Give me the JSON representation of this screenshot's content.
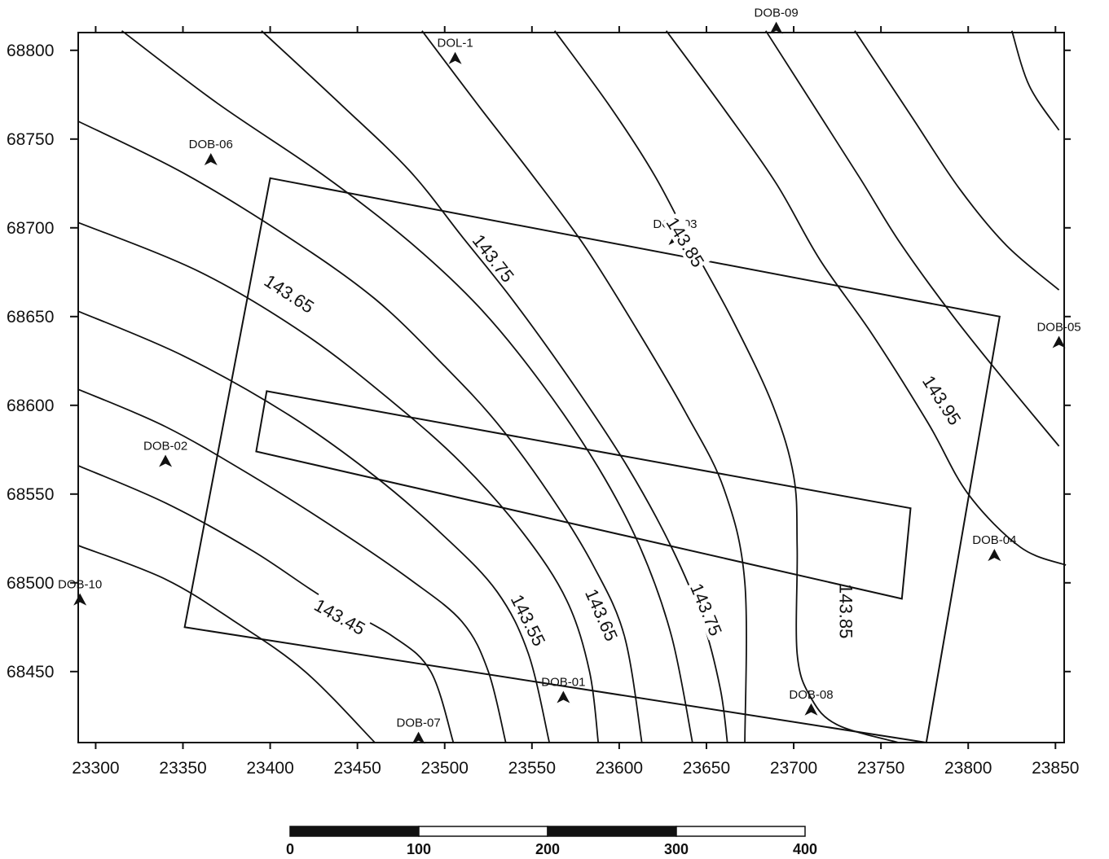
{
  "map": {
    "x_axis": {
      "min": 23290,
      "max": 23855,
      "ticks": [
        23300,
        23350,
        23400,
        23450,
        23500,
        23550,
        23600,
        23650,
        23700,
        23750,
        23800,
        23850
      ],
      "tick_labels": [
        "23300",
        "23350",
        "23400",
        "23450",
        "23500",
        "23550",
        "23600",
        "23650",
        "23700",
        "23750",
        "23800",
        "23850"
      ]
    },
    "y_axis": {
      "min": 68410,
      "max": 68810,
      "ticks": [
        68450,
        68500,
        68550,
        68600,
        68650,
        68700,
        68750,
        68800
      ],
      "tick_labels": [
        "68450",
        "68500",
        "68550",
        "68600",
        "68650",
        "68700",
        "68750",
        "68800"
      ]
    },
    "wells": [
      {
        "name": "DOL-1",
        "x": 23506,
        "y": 68795
      },
      {
        "name": "DOB-09",
        "x": 23690,
        "y": 68812
      },
      {
        "name": "DOB-06",
        "x": 23366,
        "y": 68738
      },
      {
        "name": "DOB-03",
        "x": 23632,
        "y": 68693
      },
      {
        "name": "DOB-05",
        "x": 23852,
        "y": 68635
      },
      {
        "name": "DOB-02",
        "x": 23340,
        "y": 68568
      },
      {
        "name": "DOB-04",
        "x": 23815,
        "y": 68515
      },
      {
        "name": "DOB-10",
        "x": 23291,
        "y": 68490
      },
      {
        "name": "DOB-01",
        "x": 23568,
        "y": 68435
      },
      {
        "name": "DOB-08",
        "x": 23710,
        "y": 68428
      },
      {
        "name": "DOB-07",
        "x": 23485,
        "y": 68412
      }
    ],
    "contours": [
      {
        "points": [
          [
            23290,
            68521
          ],
          [
            23340,
            68502
          ],
          [
            23380,
            68478
          ],
          [
            23420,
            68450
          ],
          [
            23460,
            68410
          ]
        ]
      },
      {
        "points": [
          [
            23290,
            68566
          ],
          [
            23340,
            68545
          ],
          [
            23390,
            68518
          ],
          [
            23430,
            68492
          ],
          [
            23470,
            68470
          ],
          [
            23492,
            68450
          ],
          [
            23505,
            68410
          ]
        ],
        "label": "143.45",
        "label_at": [
          23440,
          68481
        ]
      },
      {
        "points": [
          [
            23290,
            68609
          ],
          [
            23340,
            68588
          ],
          [
            23390,
            68560
          ],
          [
            23440,
            68529
          ],
          [
            23480,
            68502
          ],
          [
            23510,
            68478
          ],
          [
            23525,
            68450
          ],
          [
            23535,
            68410
          ]
        ]
      },
      {
        "points": [
          [
            23290,
            68653
          ],
          [
            23350,
            68628
          ],
          [
            23410,
            68595
          ],
          [
            23460,
            68560
          ],
          [
            23500,
            68526
          ],
          [
            23530,
            68495
          ],
          [
            23548,
            68460
          ],
          [
            23560,
            68410
          ]
        ],
        "label": "143.55",
        "label_at": [
          23548,
          68479
        ]
      },
      {
        "points": [
          [
            23290,
            68703
          ],
          [
            23360,
            68675
          ],
          [
            23420,
            68640
          ],
          [
            23470,
            68602
          ],
          [
            23510,
            68567
          ],
          [
            23545,
            68528
          ],
          [
            23570,
            68490
          ],
          [
            23583,
            68450
          ],
          [
            23588,
            68410
          ]
        ]
      },
      {
        "points": [
          [
            23290,
            68760
          ],
          [
            23350,
            68731
          ],
          [
            23410,
            68695
          ],
          [
            23460,
            68660
          ],
          [
            23500,
            68622
          ],
          [
            23530,
            68590
          ],
          [
            23560,
            68550
          ],
          [
            23585,
            68510
          ],
          [
            23603,
            68470
          ],
          [
            23613,
            68410
          ]
        ],
        "label": "143.65",
        "label_at": [
          23590,
          68482
        ]
      },
      {
        "points": [
          [
            23315,
            68811
          ],
          [
            23370,
            68770
          ],
          [
            23430,
            68730
          ],
          [
            23480,
            68692
          ],
          [
            23520,
            68655
          ],
          [
            23555,
            68613
          ],
          [
            23588,
            68565
          ],
          [
            23612,
            68520
          ],
          [
            23630,
            68470
          ],
          [
            23642,
            68410
          ]
        ]
      },
      {
        "points": [
          [
            23395,
            68811
          ],
          [
            23440,
            68770
          ],
          [
            23480,
            68732
          ],
          [
            23510,
            68695
          ],
          [
            23540,
            68658
          ],
          [
            23575,
            68610
          ],
          [
            23605,
            68565
          ],
          [
            23630,
            68520
          ],
          [
            23648,
            68478
          ],
          [
            23658,
            68440
          ],
          [
            23662,
            68410
          ]
        ],
        "label": "143.75",
        "label_at": [
          23650,
          68485
        ]
      },
      {
        "points": [
          [
            23487,
            68811
          ],
          [
            23520,
            68768
          ],
          [
            23550,
            68730
          ],
          [
            23580,
            68690
          ],
          [
            23610,
            68643
          ],
          [
            23638,
            68596
          ],
          [
            23660,
            68553
          ],
          [
            23672,
            68500
          ],
          [
            23672,
            68410
          ]
        ]
      },
      {
        "points": [
          [
            23563,
            68811
          ],
          [
            23595,
            68768
          ],
          [
            23620,
            68730
          ],
          [
            23640,
            68693
          ],
          [
            23665,
            68648
          ],
          [
            23688,
            68600
          ],
          [
            23700,
            68560
          ],
          [
            23702,
            68520
          ],
          [
            23702,
            68460
          ],
          [
            23710,
            68435
          ],
          [
            23725,
            68420
          ],
          [
            23760,
            68410
          ]
        ],
        "label": "143.85",
        "label_at": [
          23730,
          68484
        ]
      },
      {
        "points": [
          [
            23627,
            68811
          ],
          [
            23660,
            68767
          ],
          [
            23690,
            68725
          ],
          [
            23715,
            68682
          ],
          [
            23745,
            68640
          ],
          [
            23777,
            68590
          ],
          [
            23800,
            68550
          ],
          [
            23830,
            68520
          ],
          [
            23856,
            68510
          ]
        ]
      },
      {
        "points": [
          [
            23684,
            68811
          ],
          [
            23712,
            68768
          ],
          [
            23738,
            68728
          ],
          [
            23760,
            68693
          ],
          [
            23790,
            68652
          ],
          [
            23820,
            68615
          ],
          [
            23852,
            68577
          ]
        ]
      },
      {
        "points": [
          [
            23735,
            68811
          ],
          [
            23768,
            68762
          ],
          [
            23795,
            68722
          ],
          [
            23822,
            68690
          ],
          [
            23852,
            68665
          ]
        ]
      },
      {
        "points": [
          [
            23825,
            68811
          ],
          [
            23835,
            68780
          ],
          [
            23852,
            68755
          ]
        ]
      }
    ],
    "contour_labels_floating": [
      {
        "label": "143.65",
        "x": 23411,
        "y": 68663
      },
      {
        "label": "143.75",
        "x": 23528,
        "y": 68683
      },
      {
        "label": "143.85",
        "x": 23638,
        "y": 68692
      },
      {
        "label": "143.95",
        "x": 23785,
        "y": 68603
      }
    ],
    "outer_boundary": [
      [
        23400,
        68728
      ],
      [
        23818,
        68650
      ],
      [
        23776,
        68410
      ],
      [
        23351,
        68475
      ]
    ],
    "inner_boundary": [
      [
        23398,
        68608
      ],
      [
        23767,
        68542
      ],
      [
        23762,
        68491
      ],
      [
        23392,
        68574
      ]
    ]
  },
  "scale_bar": {
    "labels": [
      "0",
      "100",
      "200",
      "300",
      "400"
    ]
  }
}
